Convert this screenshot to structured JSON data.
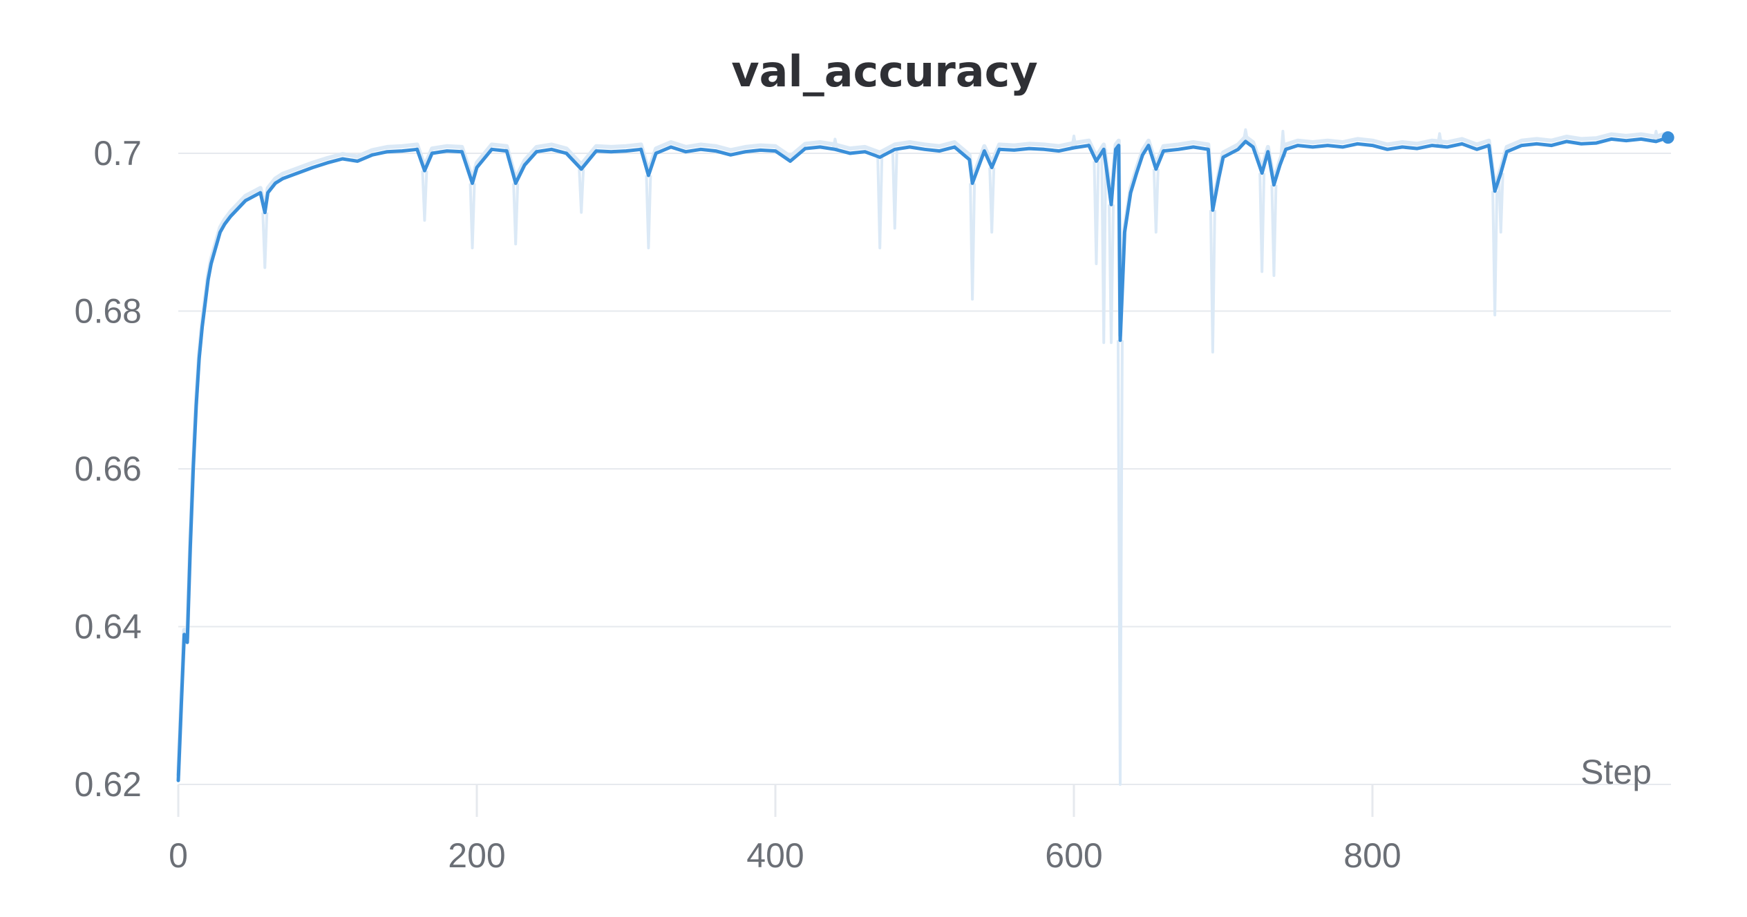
{
  "chart_data": {
    "type": "line",
    "title": "val_accuracy",
    "xlabel": "Step",
    "ylabel": "",
    "xlim": [
      0,
      1000
    ],
    "ylim": [
      0.62,
      0.703
    ],
    "x_ticks": [
      0,
      200,
      400,
      600,
      800
    ],
    "x_tick_labels": [
      "0",
      "200",
      "400",
      "600",
      "800"
    ],
    "y_ticks": [
      0.62,
      0.64,
      0.66,
      0.68,
      0.7
    ],
    "y_tick_labels": [
      "0.62",
      "0.64",
      "0.66",
      "0.68",
      "0.7"
    ],
    "grid": true,
    "colors": {
      "line": "#3a8fd9",
      "raw": "#dbe9f6",
      "grid": "#e6e9ee",
      "text": "#6b6f76",
      "title": "#2f3035"
    },
    "series": [
      {
        "name": "",
        "smoothed_points": [
          [
            0,
            0.6205
          ],
          [
            2,
            0.63
          ],
          [
            4,
            0.639
          ],
          [
            6,
            0.638
          ],
          [
            8,
            0.65
          ],
          [
            10,
            0.66
          ],
          [
            12,
            0.668
          ],
          [
            14,
            0.674
          ],
          [
            16,
            0.678
          ],
          [
            18,
            0.681
          ],
          [
            20,
            0.684
          ],
          [
            22,
            0.686
          ],
          [
            25,
            0.688
          ],
          [
            28,
            0.69
          ],
          [
            31,
            0.691
          ],
          [
            35,
            0.692
          ],
          [
            40,
            0.693
          ],
          [
            45,
            0.694
          ],
          [
            50,
            0.6945
          ],
          [
            55,
            0.695
          ],
          [
            58,
            0.6925
          ],
          [
            60,
            0.695
          ],
          [
            65,
            0.6962
          ],
          [
            70,
            0.6968
          ],
          [
            80,
            0.6975
          ],
          [
            90,
            0.6982
          ],
          [
            100,
            0.6988
          ],
          [
            110,
            0.6993
          ],
          [
            120,
            0.699
          ],
          [
            130,
            0.6998
          ],
          [
            140,
            0.7002
          ],
          [
            150,
            0.7003
          ],
          [
            160,
            0.7005
          ],
          [
            165,
            0.6978
          ],
          [
            170,
            0.7
          ],
          [
            180,
            0.7003
          ],
          [
            190,
            0.7002
          ],
          [
            197,
            0.6962
          ],
          [
            200,
            0.6982
          ],
          [
            210,
            0.7005
          ],
          [
            220,
            0.7003
          ],
          [
            226,
            0.6962
          ],
          [
            232,
            0.6985
          ],
          [
            240,
            0.7002
          ],
          [
            250,
            0.7005
          ],
          [
            260,
            0.7
          ],
          [
            270,
            0.698
          ],
          [
            280,
            0.7003
          ],
          [
            290,
            0.7002
          ],
          [
            300,
            0.7003
          ],
          [
            310,
            0.7005
          ],
          [
            315,
            0.6972
          ],
          [
            320,
            0.7
          ],
          [
            330,
            0.7008
          ],
          [
            340,
            0.7002
          ],
          [
            350,
            0.7005
          ],
          [
            360,
            0.7003
          ],
          [
            370,
            0.6998
          ],
          [
            380,
            0.7002
          ],
          [
            390,
            0.7004
          ],
          [
            400,
            0.7003
          ],
          [
            410,
            0.699
          ],
          [
            420,
            0.7006
          ],
          [
            430,
            0.7008
          ],
          [
            440,
            0.7005
          ],
          [
            450,
            0.7
          ],
          [
            460,
            0.7002
          ],
          [
            470,
            0.6995
          ],
          [
            480,
            0.7005
          ],
          [
            490,
            0.7008
          ],
          [
            500,
            0.7005
          ],
          [
            510,
            0.7003
          ],
          [
            520,
            0.7008
          ],
          [
            530,
            0.6992
          ],
          [
            532,
            0.6962
          ],
          [
            540,
            0.7003
          ],
          [
            545,
            0.6982
          ],
          [
            550,
            0.7005
          ],
          [
            560,
            0.7004
          ],
          [
            570,
            0.7006
          ],
          [
            580,
            0.7005
          ],
          [
            590,
            0.7003
          ],
          [
            600,
            0.7007
          ],
          [
            610,
            0.701
          ],
          [
            615,
            0.699
          ],
          [
            620,
            0.7005
          ],
          [
            622,
            0.6978
          ],
          [
            625,
            0.6935
          ],
          [
            628,
            0.7005
          ],
          [
            630,
            0.701
          ],
          [
            631,
            0.6763
          ],
          [
            634,
            0.69
          ],
          [
            638,
            0.695
          ],
          [
            642,
            0.6975
          ],
          [
            646,
            0.6998
          ],
          [
            650,
            0.701
          ],
          [
            655,
            0.698
          ],
          [
            660,
            0.7003
          ],
          [
            670,
            0.7005
          ],
          [
            680,
            0.7008
          ],
          [
            690,
            0.7005
          ],
          [
            693,
            0.6928
          ],
          [
            697,
            0.6968
          ],
          [
            700,
            0.6995
          ],
          [
            710,
            0.7005
          ],
          [
            715,
            0.7015
          ],
          [
            720,
            0.7008
          ],
          [
            726,
            0.6975
          ],
          [
            730,
            0.7002
          ],
          [
            734,
            0.696
          ],
          [
            738,
            0.6985
          ],
          [
            742,
            0.7005
          ],
          [
            750,
            0.701
          ],
          [
            760,
            0.7008
          ],
          [
            770,
            0.701
          ],
          [
            780,
            0.7008
          ],
          [
            790,
            0.7012
          ],
          [
            800,
            0.701
          ],
          [
            810,
            0.7005
          ],
          [
            820,
            0.7008
          ],
          [
            830,
            0.7006
          ],
          [
            840,
            0.701
          ],
          [
            850,
            0.7008
          ],
          [
            860,
            0.7012
          ],
          [
            870,
            0.7005
          ],
          [
            878,
            0.701
          ],
          [
            882,
            0.6952
          ],
          [
            886,
            0.6975
          ],
          [
            890,
            0.7002
          ],
          [
            900,
            0.701
          ],
          [
            910,
            0.7012
          ],
          [
            920,
            0.701
          ],
          [
            930,
            0.7015
          ],
          [
            940,
            0.7012
          ],
          [
            950,
            0.7013
          ],
          [
            960,
            0.7018
          ],
          [
            970,
            0.7016
          ],
          [
            980,
            0.7018
          ],
          [
            990,
            0.7015
          ],
          [
            998,
            0.702
          ]
        ],
        "raw_dips": [
          [
            165,
            0.6915
          ],
          [
            197,
            0.688
          ],
          [
            226,
            0.6885
          ],
          [
            270,
            0.6925
          ],
          [
            315,
            0.688
          ],
          [
            58,
            0.6855
          ],
          [
            470,
            0.688
          ],
          [
            480,
            0.6905
          ],
          [
            532,
            0.6815
          ],
          [
            545,
            0.69
          ],
          [
            615,
            0.686
          ],
          [
            620,
            0.676
          ],
          [
            625,
            0.676
          ],
          [
            631,
            0.62
          ],
          [
            655,
            0.69
          ],
          [
            693,
            0.6748
          ],
          [
            726,
            0.685
          ],
          [
            734,
            0.6845
          ],
          [
            882,
            0.6795
          ],
          [
            886,
            0.69
          ]
        ],
        "raw_peaks": [
          [
            440,
            0.7018
          ],
          [
            600,
            0.7022
          ],
          [
            715,
            0.703
          ],
          [
            740,
            0.7028
          ],
          [
            845,
            0.7025
          ],
          [
            990,
            0.7028
          ]
        ]
      }
    ]
  }
}
